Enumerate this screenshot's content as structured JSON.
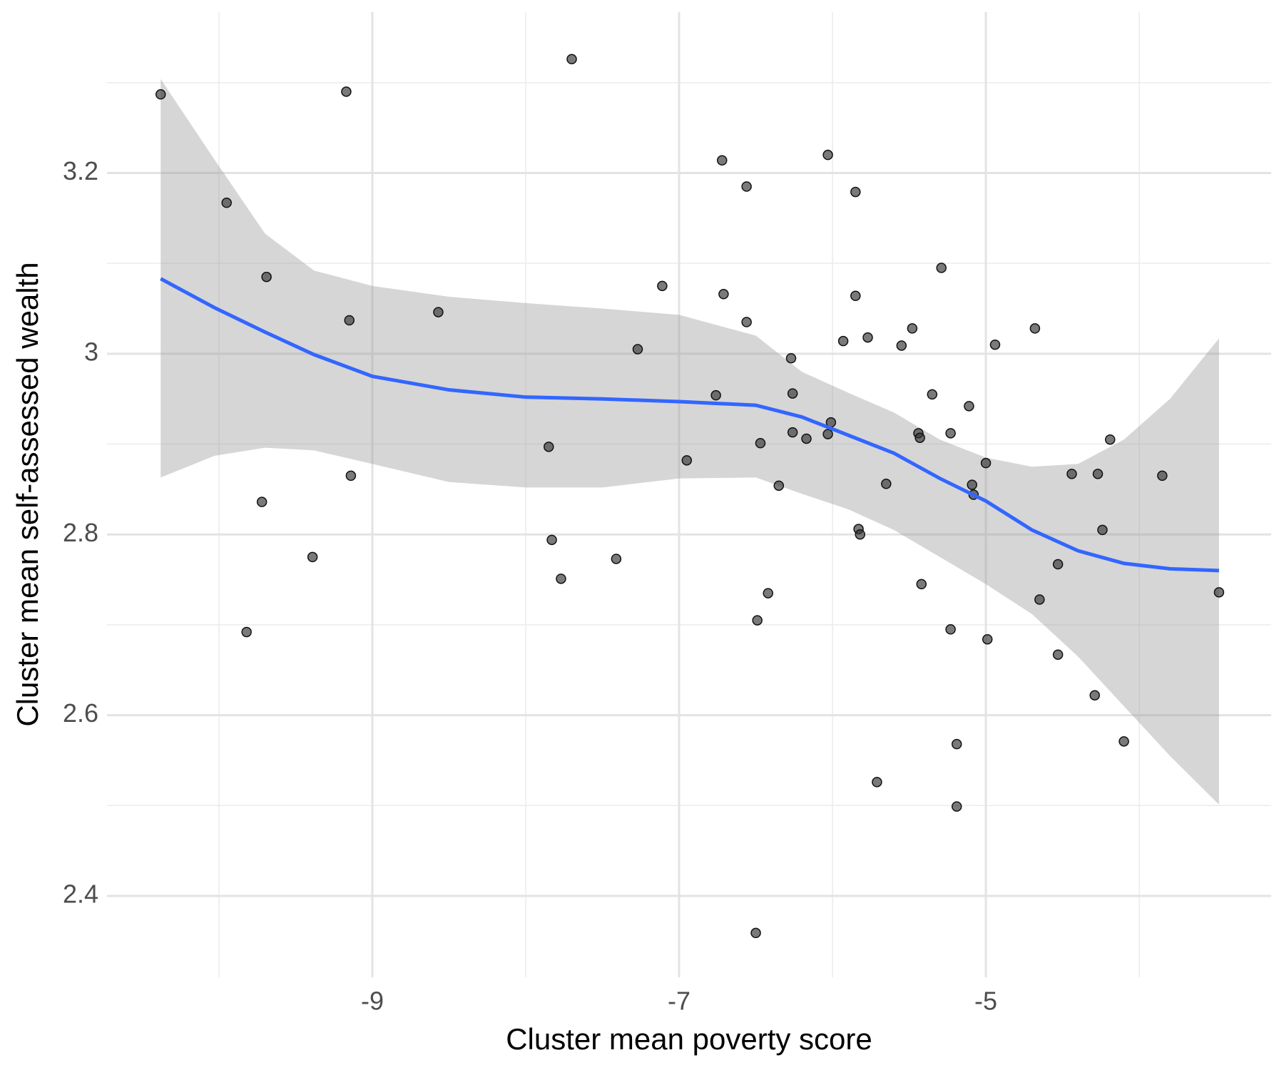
{
  "chart_data": {
    "type": "scatter",
    "x_label": "Cluster mean poverty score",
    "y_label": "Cluster mean self-assessed wealth",
    "xlim": [
      -10.73,
      -3.14
    ],
    "ylim": [
      2.31,
      3.378
    ],
    "xticks": [
      -9,
      -7,
      -5
    ],
    "yticks": [
      2.4,
      2.6,
      2.8,
      3.0,
      3.2
    ],
    "xticks_minor": [
      -10,
      -8,
      -6,
      -4
    ],
    "yticks_minor": [
      2.5,
      2.7,
      2.9,
      3.1,
      3.3
    ],
    "grid": true,
    "points": {
      "color": "#333333",
      "x": [
        -10.38,
        -9.95,
        -9.17,
        -9.69,
        -9.15,
        -8.57,
        -9.72,
        -9.14,
        -9.39,
        -9.82,
        -7.7,
        -7.85,
        -7.83,
        -7.77,
        -7.41,
        -7.27,
        -7.11,
        -6.95,
        -6.72,
        -6.71,
        -6.76,
        -6.56,
        -6.56,
        -6.47,
        -6.5,
        -6.49,
        -6.42,
        -6.35,
        -6.27,
        -6.26,
        -6.26,
        -6.17,
        -6.03,
        -6.01,
        -6.03,
        -5.93,
        -5.85,
        -5.85,
        -5.77,
        -5.83,
        -5.82,
        -5.71,
        -5.65,
        -5.55,
        -5.48,
        -5.44,
        -5.43,
        -5.42,
        -5.35,
        -5.29,
        -5.23,
        -5.23,
        -5.19,
        -5.19,
        -5.11,
        -5.09,
        -5.08,
        -5.0,
        -4.99,
        -4.94,
        -4.68,
        -4.65,
        -4.53,
        -4.53,
        -4.44,
        -4.29,
        -4.27,
        -4.24,
        -4.19,
        -4.1,
        -3.85,
        -3.48
      ],
      "values": [
        3.287,
        3.167,
        3.29,
        3.085,
        3.037,
        3.046,
        2.836,
        2.865,
        2.775,
        2.692,
        3.326,
        2.897,
        2.794,
        2.751,
        2.773,
        3.005,
        3.075,
        2.882,
        3.214,
        3.066,
        2.954,
        3.185,
        3.035,
        2.901,
        2.359,
        2.705,
        2.735,
        2.854,
        2.995,
        2.956,
        2.913,
        2.906,
        3.22,
        2.924,
        2.911,
        3.014,
        3.179,
        3.064,
        3.018,
        2.806,
        2.8,
        2.526,
        2.856,
        3.009,
        3.028,
        2.912,
        2.907,
        2.745,
        2.955,
        3.095,
        2.912,
        2.695,
        2.568,
        2.499,
        2.942,
        2.855,
        2.844,
        2.879,
        2.684,
        3.01,
        3.028,
        2.728,
        2.767,
        2.667,
        2.867,
        2.622,
        2.867,
        2.805,
        2.905,
        2.571,
        2.865,
        2.736
      ]
    },
    "smooth": {
      "color": "#3366ff",
      "band_color": "#999999",
      "x": [
        -10.38,
        -10.03,
        -9.7,
        -9.38,
        -9.0,
        -8.5,
        -8.0,
        -7.5,
        -7.0,
        -6.5,
        -6.2,
        -5.9,
        -5.6,
        -5.3,
        -5.0,
        -4.7,
        -4.4,
        -4.1,
        -3.8,
        -3.48
      ],
      "values": [
        3.083,
        3.051,
        3.024,
        2.999,
        2.975,
        2.96,
        2.952,
        2.95,
        2.947,
        2.943,
        2.93,
        2.91,
        2.89,
        2.862,
        2.837,
        2.805,
        2.782,
        2.768,
        2.762,
        2.76
      ],
      "upper": [
        3.304,
        3.215,
        3.133,
        3.092,
        3.075,
        3.063,
        3.056,
        3.05,
        3.043,
        3.02,
        2.98,
        2.957,
        2.935,
        2.905,
        2.885,
        2.875,
        2.878,
        2.905,
        2.95,
        3.017
      ],
      "lower": [
        2.863,
        2.887,
        2.896,
        2.893,
        2.878,
        2.858,
        2.852,
        2.852,
        2.862,
        2.863,
        2.845,
        2.828,
        2.805,
        2.775,
        2.745,
        2.712,
        2.665,
        2.61,
        2.555,
        2.501
      ]
    }
  }
}
